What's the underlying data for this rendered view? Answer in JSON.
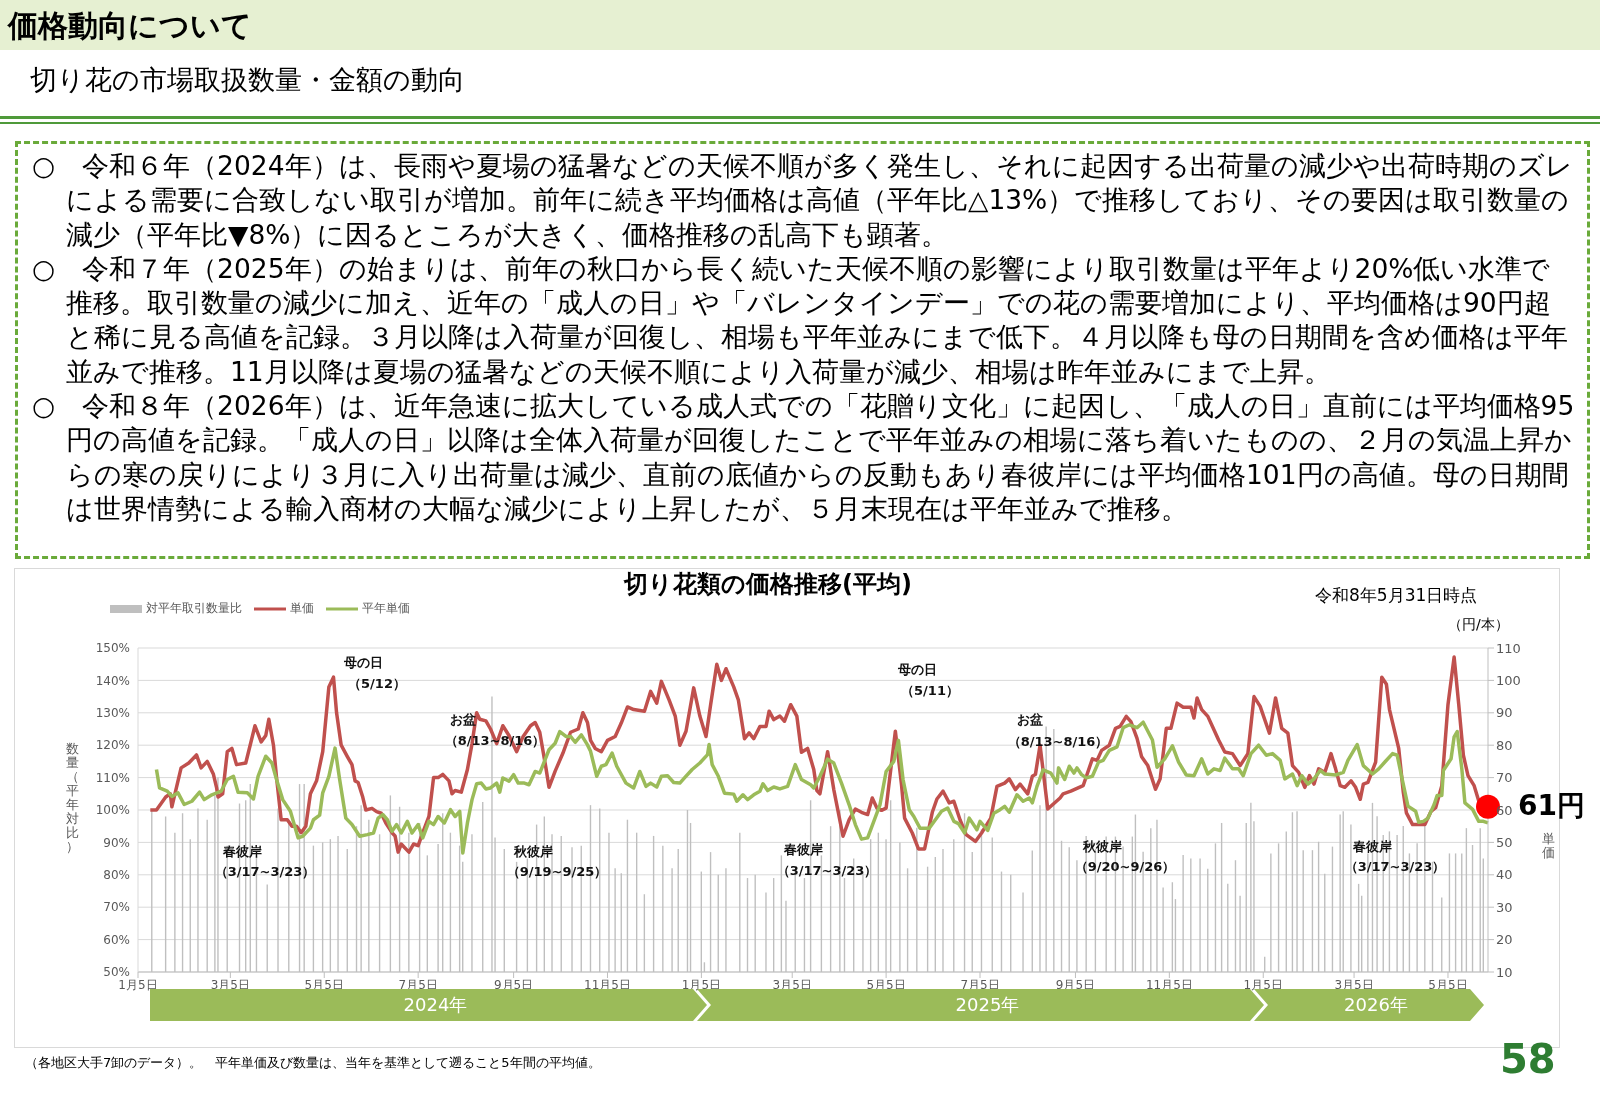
{
  "chart_data": {
    "type": "bar",
    "title": "切り花類の価格推移(平均)",
    "ylabel": "数量（平年対比）",
    "y2label": "単価",
    "legend": "top left",
    "grid": "y",
    "xlim": [
      "2024-01-05",
      "2026-05-31"
    ],
    "xticks": [
      {
        "value": "2024-01-05",
        "label": "1月5日"
      },
      {
        "value": "2024-03-05",
        "label": "3月5日"
      },
      {
        "value": "2024-05-05",
        "label": "5月5日"
      },
      {
        "value": "2024-07-05",
        "label": "7月5日"
      },
      {
        "value": "2024-09-05",
        "label": "9月5日"
      },
      {
        "value": "2024-11-05",
        "label": "11月5日"
      },
      {
        "value": "2025-01-05",
        "label": "1月5日"
      },
      {
        "value": "2025-03-05",
        "label": "3月5日"
      },
      {
        "value": "2025-05-05",
        "label": "5月5日"
      },
      {
        "value": "2025-07-05",
        "label": "7月5日"
      },
      {
        "value": "2025-09-05",
        "label": "9月5日"
      },
      {
        "value": "2025-11-05",
        "label": "11月5日"
      },
      {
        "value": "2026-01-05",
        "label": "1月5日"
      },
      {
        "value": "2026-03-05",
        "label": "3月5日"
      },
      {
        "value": "2026-05-05",
        "label": "5月5日"
      }
    ],
    "ylim": [
      50,
      150
    ],
    "yticks": [
      {
        "value": 50,
        "label": "50%"
      },
      {
        "value": 60,
        "label": "60%"
      },
      {
        "value": 70,
        "label": "70%"
      },
      {
        "value": 80,
        "label": "80%"
      },
      {
        "value": 90,
        "label": "90%"
      },
      {
        "value": 100,
        "label": "100%"
      },
      {
        "value": 110,
        "label": "110%"
      },
      {
        "value": 120,
        "label": "120%"
      },
      {
        "value": 130,
        "label": "130%"
      },
      {
        "value": 140,
        "label": "140%"
      },
      {
        "value": 150,
        "label": "150%"
      }
    ],
    "y2lim": [
      10,
      110
    ],
    "y2ticks": [
      10,
      20,
      30,
      40,
      50,
      60,
      70,
      80,
      90,
      100,
      110
    ],
    "x": [
      "2024-01-14",
      "2024-01-23",
      "2024-01-29",
      "2024-02-03",
      "2024-02-08",
      "2024-02-13",
      "2024-02-19",
      "2024-02-24",
      "2024-02-26",
      "2024-03-03",
      "2024-03-11",
      "2024-03-15",
      "2024-03-18",
      "2024-03-22",
      "2024-03-29",
      "2024-04-05",
      "2024-04-12",
      "2024-04-19",
      "2024-04-22",
      "2024-04-28",
      "2024-05-04",
      "2024-05-09",
      "2024-05-14",
      "2024-05-20",
      "2024-05-26",
      "2024-05-29",
      "2024-06-03",
      "2024-06-10",
      "2024-06-17",
      "2024-06-23",
      "2024-06-29",
      "2024-07-06",
      "2024-07-11",
      "2024-07-18",
      "2024-07-21",
      "2024-07-26",
      "2024-08-01",
      "2024-08-03",
      "2024-08-09",
      "2024-08-16",
      "2024-08-22",
      "2024-08-24",
      "2024-08-30",
      "2024-09-07",
      "2024-09-14",
      "2024-09-20",
      "2024-09-25",
      "2024-09-30",
      "2024-10-06",
      "2024-10-13",
      "2024-10-19",
      "2024-10-25",
      "2024-10-31",
      "2024-11-06",
      "2024-11-10",
      "2024-11-14",
      "2024-11-18",
      "2024-11-24",
      "2024-11-29",
      "2024-12-05",
      "2024-12-11",
      "2024-12-17",
      "2024-12-21",
      "2024-12-27",
      "2024-12-29",
      "2025-01-05",
      "2025-01-07",
      "2025-01-11",
      "2025-01-16",
      "2025-01-21",
      "2025-01-30",
      "2025-02-04",
      "2025-02-09",
      "2025-02-16",
      "2025-02-21",
      "2025-02-26",
      "2025-03-01",
      "2025-03-07",
      "2025-03-13",
      "2025-03-17",
      "2025-03-24",
      "2025-03-30",
      "2025-04-05",
      "2025-04-08",
      "2025-04-14",
      "2025-04-20",
      "2025-04-25",
      "2025-04-30",
      "2025-05-05",
      "2025-05-08",
      "2025-05-14",
      "2025-05-19",
      "2025-05-25",
      "2025-06-01",
      "2025-06-06",
      "2025-06-11",
      "2025-06-18",
      "2025-06-25",
      "2025-06-30",
      "2025-07-06",
      "2025-07-13",
      "2025-07-19",
      "2025-07-25",
      "2025-08-02",
      "2025-08-08",
      "2025-08-13",
      "2025-08-17",
      "2025-08-22",
      "2025-08-27",
      "2025-09-01",
      "2025-09-06",
      "2025-09-12",
      "2025-09-18",
      "2025-09-25",
      "2025-10-01",
      "2025-10-06",
      "2025-10-12",
      "2025-10-14",
      "2025-10-19",
      "2025-10-24",
      "2025-10-28",
      "2025-11-01",
      "2025-11-07",
      "2025-11-09",
      "2025-11-14",
      "2025-11-19",
      "2025-11-25",
      "2025-11-30",
      "2025-12-05",
      "2025-12-09",
      "2025-12-13",
      "2025-12-18",
      "2025-12-21",
      "2025-12-25",
      "2025-12-28",
      "2025-12-30",
      "2026-01-06",
      "2026-01-10",
      "2026-01-15",
      "2026-01-20",
      "2026-01-24",
      "2026-01-27",
      "2026-01-31",
      "2026-02-06",
      "2026-02-10",
      "2026-02-14",
      "2026-02-19",
      "2026-02-24",
      "2026-02-26",
      "2026-03-03",
      "2026-03-08",
      "2026-03-10",
      "2026-03-14",
      "2026-03-17",
      "2026-03-20",
      "2026-03-24",
      "2026-03-28",
      "2026-04-02",
      "2026-04-06",
      "2026-04-10",
      "2026-04-15",
      "2026-04-20",
      "2026-04-25",
      "2026-05-01",
      "2026-05-06",
      "2026-05-10",
      "2026-05-14",
      "2026-05-17",
      "2026-05-21",
      "2026-05-26",
      "2026-05-28"
    ],
    "series": [
      {
        "name": "対平年取引数量比",
        "color": "#bfbfbf",
        "values": [
          100,
          98,
          93,
          99,
          91,
          100.5,
          97,
          104.5,
          110,
          89,
          102,
          103,
          108,
          86,
          77,
          100.5,
          96,
          108,
          108,
          89,
          90,
          91,
          92,
          88,
          95,
          101.5,
          97,
          92.5,
          104.5,
          101,
          93,
          96,
          86,
          89.5,
          99,
          93,
          89,
          84,
          92.5,
          102.5,
          135,
          91.5,
          88,
          84,
          85,
          95.5,
          98,
          92.5,
          92,
          88.5,
          89,
          101.5,
          100.5,
          93,
          82,
          80.5,
          97,
          93,
          74,
          92,
          89,
          82,
          88,
          100,
          96,
          81,
          53,
          87,
          80,
          82,
          93,
          79,
          80,
          74.5,
          79,
          86,
          72,
          81,
          79,
          103,
          86,
          95,
          100,
          79,
          85,
          81,
          91,
          93,
          91,
          103,
          90,
          82,
          94.5,
          82.5,
          85.5,
          88,
          91,
          99,
          87,
          94,
          91.5,
          81,
          80,
          74.5,
          87.5,
          101.5,
          125.8,
          125,
          90.5,
          88.5,
          84.5,
          92,
          88,
          91.8,
          91.8,
          88.7,
          91.8,
          98.6,
          87.1,
          94.4,
          97,
          76.1,
          77.7,
          72.5,
          86.1,
          85,
          85,
          81.9,
          89.7,
          96,
          77.2,
          84.5,
          73.5,
          96,
          102.2,
          96.5,
          54.7,
          86.6,
          89.7,
          93.4,
          99.3,
          99.6,
          87.6,
          87.6,
          90.2,
          80.3,
          88.7,
          98.6,
          99.6,
          95.5,
          77.2,
          73.5,
          86.6,
          102.2,
          98.1,
          92.3,
          93.4,
          92.3,
          95.1,
          86.6,
          89.7,
          95.5,
          84,
          73,
          86.6,
          86.6,
          86.6,
          94.4,
          89.2,
          94.4,
          85
        ]
      },
      {
        "name": "単価",
        "type": "line",
        "axis": "y2",
        "color": "#c0504d",
        "x": [
          "2024-01-13",
          "2024-01-17",
          "2024-01-23",
          "2024-01-26",
          "2024-01-27",
          "2024-01-30",
          "2024-02-02",
          "2024-02-07",
          "2024-02-12",
          "2024-02-15",
          "2024-02-19",
          "2024-02-23",
          "2024-02-25",
          "2024-02-26",
          "2024-02-29",
          "2024-03-03",
          "2024-03-06",
          "2024-03-09",
          "2024-03-15",
          "2024-03-21",
          "2024-03-25",
          "2024-03-28",
          "2024-03-30",
          "2024-04-02",
          "2024-04-04",
          "2024-04-07",
          "2024-04-11",
          "2024-04-14",
          "2024-04-17",
          "2024-04-20",
          "2024-04-23",
          "2024-04-26",
          "2024-04-30",
          "2024-05-04",
          "2024-05-08",
          "2024-05-11",
          "2024-05-13",
          "2024-05-16",
          "2024-05-20",
          "2024-05-23",
          "2024-05-25",
          "2024-05-27",
          "2024-05-30",
          "2024-06-01",
          "2024-06-05",
          "2024-06-08",
          "2024-06-11",
          "2024-06-14",
          "2024-06-18",
          "2024-06-20",
          "2024-06-22",
          "2024-06-24",
          "2024-06-29",
          "2024-07-02",
          "2024-07-05",
          "2024-07-08",
          "2024-07-12",
          "2024-07-15",
          "2024-07-18",
          "2024-07-21",
          "2024-07-25",
          "2024-07-27",
          "2024-07-29",
          "2024-08-02",
          "2024-08-06",
          "2024-08-09",
          "2024-08-12",
          "2024-08-14",
          "2024-08-18",
          "2024-08-21",
          "2024-08-25",
          "2024-08-29",
          "2024-09-02",
          "2024-09-07",
          "2024-09-11",
          "2024-09-16",
          "2024-09-19",
          "2024-09-22",
          "2024-09-26",
          "2024-09-28",
          "2024-10-02",
          "2024-10-07",
          "2024-10-12",
          "2024-10-17",
          "2024-10-20",
          "2024-10-23",
          "2024-10-25",
          "2024-10-28",
          "2024-11-01",
          "2024-11-05",
          "2024-11-10",
          "2024-11-14",
          "2024-11-18",
          "2024-11-22",
          "2024-11-29",
          "2024-12-03",
          "2024-12-07",
          "2024-12-10",
          "2024-12-15",
          "2024-12-19",
          "2024-12-22",
          "2024-12-26",
          "2024-12-31",
          "2025-01-04",
          "2025-01-08",
          "2025-01-11",
          "2025-01-15",
          "2025-01-18",
          "2025-01-21",
          "2025-01-26",
          "2025-01-29",
          "2025-02-02",
          "2025-02-05",
          "2025-02-08",
          "2025-02-12",
          "2025-02-16",
          "2025-02-18",
          "2025-02-21",
          "2025-02-25",
          "2025-02-28",
          "2025-03-04",
          "2025-03-08",
          "2025-03-11",
          "2025-03-15",
          "2025-03-19",
          "2025-03-21",
          "2025-03-23",
          "2025-03-28",
          "2025-04-01",
          "2025-04-07",
          "2025-04-11",
          "2025-04-15",
          "2025-04-19",
          "2025-04-23",
          "2025-04-26",
          "2025-04-29",
          "2025-05-02",
          "2025-05-05",
          "2025-05-11",
          "2025-05-15",
          "2025-05-17",
          "2025-05-22",
          "2025-05-26",
          "2025-05-30",
          "2025-06-04",
          "2025-06-07",
          "2025-06-11",
          "2025-06-15",
          "2025-06-18",
          "2025-06-22",
          "2025-06-26",
          "2025-07-02",
          "2025-07-06",
          "2025-07-12",
          "2025-07-16",
          "2025-07-21",
          "2025-07-24",
          "2025-07-28",
          "2025-07-31",
          "2025-08-05",
          "2025-08-08",
          "2025-08-10",
          "2025-08-13",
          "2025-08-18",
          "2025-08-22",
          "2025-08-26",
          "2025-08-28",
          "2025-09-02",
          "2025-09-10",
          "2025-09-16",
          "2025-09-19",
          "2025-09-22",
          "2025-09-27",
          "2025-10-01",
          "2025-10-04",
          "2025-10-08",
          "2025-10-11",
          "2025-10-15",
          "2025-10-18",
          "2025-10-22",
          "2025-10-27",
          "2025-10-30",
          "2025-11-03",
          "2025-11-06",
          "2025-11-10",
          "2025-11-14",
          "2025-11-19",
          "2025-11-21",
          "2025-11-23",
          "2025-11-26",
          "2025-11-30",
          "2025-12-03",
          "2025-12-07",
          "2025-12-11",
          "2025-12-16",
          "2025-12-21",
          "2025-12-26",
          "2025-12-30",
          "2026-01-03",
          "2026-01-09",
          "2026-01-13",
          "2026-01-17",
          "2026-01-21",
          "2026-01-24",
          "2026-01-28",
          "2026-02-01",
          "2026-02-04",
          "2026-02-07",
          "2026-02-10",
          "2026-02-14",
          "2026-02-18",
          "2026-02-21",
          "2026-02-24",
          "2026-02-27",
          "2026-03-03",
          "2026-03-06",
          "2026-03-09",
          "2026-03-11",
          "2026-03-14",
          "2026-03-19",
          "2026-03-23",
          "2026-03-26",
          "2026-03-28",
          "2026-04-03",
          "2026-04-06",
          "2026-04-08",
          "2026-04-12",
          "2026-04-16",
          "2026-04-20",
          "2026-04-24",
          "2026-04-27",
          "2026-05-01",
          "2026-05-05",
          "2026-05-09",
          "2026-05-12",
          "2026-05-15",
          "2026-05-18",
          "2026-05-22",
          "2026-05-25",
          "2026-05-31"
        ],
        "values": [
          60,
          60,
          64,
          65,
          61,
          67,
          73,
          74.5,
          77,
          73,
          75,
          71,
          67,
          64,
          65,
          78,
          79,
          74,
          74.5,
          86,
          81,
          83,
          88,
          80,
          70,
          57,
          57,
          55,
          55,
          53,
          55,
          65,
          69,
          78,
          98,
          101,
          90,
          80,
          76.5,
          74,
          69,
          68.5,
          64,
          60,
          60.5,
          59.5,
          59,
          56,
          53,
          52,
          47,
          49.5,
          47,
          49.5,
          49,
          53,
          58,
          70,
          70,
          71,
          69,
          65,
          66,
          65.5,
          72.5,
          80.5,
          90,
          88,
          87.5,
          85,
          80.5,
          86,
          83,
          78,
          82.5,
          86,
          87,
          84,
          73,
          67,
          72,
          77.5,
          84,
          85,
          90,
          87,
          81.5,
          79,
          78,
          81.5,
          82.7,
          86.9,
          91.8,
          91,
          90.5,
          96.6,
          93,
          99.7,
          94,
          89,
          80,
          84.3,
          97.7,
          89,
          82.7,
          92.5,
          105,
          100,
          103.6,
          98,
          94,
          82,
          83.8,
          82,
          85.8,
          85.8,
          90.5,
          87.9,
          89,
          87.4,
          92.5,
          89,
          77.8,
          79,
          72.5,
          66,
          65,
          78,
          66.3,
          51.9,
          57,
          60.3,
          59.3,
          58.6,
          63.7,
          60.6,
          59.9,
          60.6,
          84.3,
          67.8,
          57.5,
          52.9,
          48,
          48,
          59.3,
          63.4,
          65.8,
          62.2,
          62.7,
          57,
          52.4,
          50.3,
          52.9,
          57.5,
          67.3,
          68.3,
          69.6,
          66.3,
          68,
          65,
          70.4,
          71,
          80,
          60.3,
          62,
          63.7,
          65,
          65.8,
          67.5,
          75.8,
          75.3,
          78.4,
          80,
          85.2,
          85.8,
          88.9,
          87.3,
          82.1,
          76.4,
          73.7,
          66.4,
          69.6,
          85.2,
          85.2,
          93,
          91.7,
          91.7,
          88.4,
          94.6,
          91,
          88.9,
          85.8,
          81.6,
          77.9,
          77.4,
          73.7,
          77.4,
          95,
          92,
          83.7,
          94.6,
          85.2,
          83.7,
          73.7,
          71.6,
          67,
          70.6,
          68,
          72.7,
          71.6,
          77.4,
          72.7,
          67.5,
          67,
          69,
          67,
          63.3,
          68,
          68.5,
          74.8,
          101,
          98.8,
          91,
          79,
          65.4,
          59.1,
          55.5,
          55.5,
          55.5,
          59.6,
          60.7,
          67.5,
          92.5,
          107.2,
          92.5,
          76.9,
          70.6,
          67.5,
          62.8,
          61
        ]
      },
      {
        "name": "平年単価",
        "type": "line",
        "axis": "y2",
        "color": "#9bbb59",
        "x": [
          "2024-01-17",
          "2024-01-19",
          "2024-01-24",
          "2024-01-27",
          "2024-01-31",
          "2024-02-04",
          "2024-02-09",
          "2024-02-14",
          "2024-02-17",
          "2024-02-22",
          "2024-02-28",
          "2024-03-03",
          "2024-03-07",
          "2024-03-10",
          "2024-03-16",
          "2024-03-20",
          "2024-03-23",
          "2024-03-28",
          "2024-04-01",
          "2024-04-04",
          "2024-04-08",
          "2024-04-13",
          "2024-04-18",
          "2024-04-21",
          "2024-04-26",
          "2024-04-28",
          "2024-05-02",
          "2024-05-04",
          "2024-05-08",
          "2024-05-12",
          "2024-05-15",
          "2024-05-19",
          "2024-05-23",
          "2024-05-28",
          "2024-06-02",
          "2024-06-06",
          "2024-06-09",
          "2024-06-12",
          "2024-06-15",
          "2024-06-18",
          "2024-06-21",
          "2024-06-24",
          "2024-06-28",
          "2024-07-01",
          "2024-07-05",
          "2024-07-08",
          "2024-07-12",
          "2024-07-15",
          "2024-07-18",
          "2024-07-22",
          "2024-07-26",
          "2024-07-29",
          "2024-08-01",
          "2024-08-03",
          "2024-08-06",
          "2024-08-09",
          "2024-08-12",
          "2024-08-15",
          "2024-08-18",
          "2024-08-21",
          "2024-08-25",
          "2024-08-27",
          "2024-08-29",
          "2024-09-02",
          "2024-09-05",
          "2024-09-08",
          "2024-09-12",
          "2024-09-15",
          "2024-09-19",
          "2024-09-22",
          "2024-09-28",
          "2024-10-02",
          "2024-10-05",
          "2024-10-09",
          "2024-10-12",
          "2024-10-15",
          "2024-10-19",
          "2024-10-23",
          "2024-10-25",
          "2024-10-29",
          "2024-11-01",
          "2024-11-04",
          "2024-11-08",
          "2024-11-11",
          "2024-11-17",
          "2024-11-22",
          "2024-11-26",
          "2024-11-30",
          "2024-12-03",
          "2024-12-07",
          "2024-12-10",
          "2024-12-14",
          "2024-12-18",
          "2024-12-22",
          "2024-12-25",
          "2024-12-30",
          "2025-01-04",
          "2025-01-09",
          "2025-01-10",
          "2025-01-12",
          "2025-01-16",
          "2025-01-20",
          "2025-01-26",
          "2025-01-28",
          "2025-02-01",
          "2025-02-04",
          "2025-02-08",
          "2025-02-12",
          "2025-02-14",
          "2025-02-17",
          "2025-02-21",
          "2025-02-25",
          "2025-03-02",
          "2025-03-07",
          "2025-03-11",
          "2025-03-17",
          "2025-03-19",
          "2025-03-23",
          "2025-03-28",
          "2025-04-01",
          "2025-04-06",
          "2025-04-11",
          "2025-04-15",
          "2025-04-19",
          "2025-04-23",
          "2025-04-27",
          "2025-05-01",
          "2025-05-05",
          "2025-05-10",
          "2025-05-13",
          "2025-05-16",
          "2025-05-20",
          "2025-05-23",
          "2025-05-27",
          "2025-06-02",
          "2025-06-06",
          "2025-06-10",
          "2025-06-14",
          "2025-06-18",
          "2025-06-21",
          "2025-06-25",
          "2025-06-28",
          "2025-07-03",
          "2025-07-05",
          "2025-07-10",
          "2025-07-14",
          "2025-07-18",
          "2025-07-21",
          "2025-07-24",
          "2025-07-29",
          "2025-08-02",
          "2025-08-06",
          "2025-08-08",
          "2025-08-11",
          "2025-08-15",
          "2025-08-20",
          "2025-08-24",
          "2025-08-25",
          "2025-08-29",
          "2025-09-01",
          "2025-09-04",
          "2025-09-06",
          "2025-09-09",
          "2025-09-12",
          "2025-09-16",
          "2025-09-20",
          "2025-09-23",
          "2025-09-27",
          "2025-10-02",
          "2025-10-06",
          "2025-10-10",
          "2025-10-15",
          "2025-10-19",
          "2025-10-25",
          "2025-10-28",
          "2025-11-02",
          "2025-11-07",
          "2025-11-11",
          "2025-11-16",
          "2025-11-21",
          "2025-11-26",
          "2025-11-30",
          "2025-12-04",
          "2025-12-08",
          "2025-12-11",
          "2025-12-16",
          "2025-12-20",
          "2025-12-23",
          "2025-12-28",
          "2026-01-02",
          "2026-01-07",
          "2026-01-11",
          "2026-01-16",
          "2026-01-19",
          "2026-01-24",
          "2026-01-27",
          "2026-01-30",
          "2026-02-03",
          "2026-02-07",
          "2026-02-11",
          "2026-02-14",
          "2026-02-21",
          "2026-02-26",
          "2026-03-01",
          "2026-03-07",
          "2026-03-11",
          "2026-03-17",
          "2026-03-21",
          "2026-03-25",
          "2026-03-30",
          "2026-04-02",
          "2026-04-05",
          "2026-04-09",
          "2026-04-14",
          "2026-04-16",
          "2026-04-19",
          "2026-04-22",
          "2026-04-26",
          "2026-04-28",
          "2026-05-01",
          "2026-05-02",
          "2026-05-07",
          "2026-05-09",
          "2026-05-11",
          "2026-05-14",
          "2026-05-16",
          "2026-05-21",
          "2026-05-25",
          "2026-05-28",
          "2026-05-31"
        ],
        "values": [
          72.5,
          66.8,
          65.8,
          64.2,
          65.3,
          61.7,
          62.7,
          65.5,
          63.2,
          64.7,
          65.8,
          69.4,
          70.4,
          65.5,
          65.3,
          63.4,
          70.4,
          76.6,
          74.5,
          69.4,
          63.2,
          59.6,
          51.4,
          51.9,
          54.4,
          57,
          58.4,
          65.3,
          70.4,
          79.1,
          69.4,
          57.5,
          55.5,
          51.9,
          52.4,
          52.9,
          57.5,
          58.6,
          57,
          53.4,
          55.5,
          52.9,
          56.5,
          52.9,
          55.5,
          51.4,
          56.5,
          55.5,
          58,
          56,
          60.1,
          58,
          59.6,
          46.7,
          56,
          63.2,
          68.1,
          68.3,
          66.5,
          66.8,
          68.3,
          65.5,
          69.9,
          68.9,
          70.9,
          68.3,
          68.3,
          67.8,
          71.9,
          71.4,
          78.6,
          80.6,
          84.2,
          82.7,
          82.7,
          80.9,
          83.2,
          80.1,
          78.1,
          70.4,
          73.5,
          74,
          77.6,
          73.5,
          68.3,
          66.8,
          71.9,
          67.3,
          68.3,
          67.1,
          70.4,
          70.6,
          68.5,
          68.3,
          69.9,
          72.5,
          74.5,
          77.1,
          80.2,
          74,
          70.4,
          65.2,
          64.9,
          62.7,
          64.7,
          63.2,
          64.7,
          65.8,
          68.1,
          66,
          67.1,
          66.5,
          67.3,
          74,
          69.4,
          67.8,
          66.8,
          70.4,
          75.7,
          74.5,
          68.3,
          61.6,
          55.5,
          51,
          51.4,
          56.5,
          61.6,
          71.9,
          75,
          81.5,
          69.4,
          60.1,
          58,
          54.4,
          54.4,
          57,
          59.6,
          60.6,
          56.5,
          55.8,
          52.9,
          57.5,
          53.9,
          56.5,
          53.7,
          59,
          60.1,
          61.1,
          59.3,
          64.7,
          62.7,
          63.7,
          62.2,
          67.3,
          72.4,
          71.4,
          68.3,
          73,
          69.4,
          73.5,
          71.4,
          73,
          70.9,
          69.9,
          70.4,
          74.8,
          75.3,
          78.4,
          79.5,
          85.4,
          86.3,
          85.4,
          87.1,
          81.6,
          73.2,
          75.8,
          79.8,
          74.8,
          70.8,
          70.6,
          75.8,
          71.1,
          72.7,
          72.2,
          76,
          72.7,
          72.7,
          70.6,
          77.4,
          80,
          76.9,
          77.4,
          75.3,
          69.6,
          71.1,
          67.5,
          70.6,
          68,
          69.6,
          72.2,
          71.1,
          70.8,
          71.6,
          75.3,
          80.2,
          73.7,
          71.1,
          72.7,
          74.8,
          77.4,
          76.9,
          70.1,
          61.2,
          59.6,
          56.2,
          56.5,
          57.5,
          61.7,
          64.5,
          64.5,
          72.2,
          75.8,
          82.6,
          84.2,
          72.7,
          62.2,
          60.2,
          56.5,
          56.5,
          56
        ]
      },
      {
        "type": "scatter",
        "axis": "y2",
        "color": "#ff0000",
        "x": [
          "2026-05-31"
        ],
        "values": [
          61
        ],
        "value_labels": [
          "61円"
        ]
      }
    ],
    "annotations": [
      "価格動向について",
      "切り花の市場取扱数量・金額の動向",
      "○　令和６年（2024年）は、長雨や夏場の猛暑などの天候不順が多く発生し、それに起因する出荷量の減少や出荷時期のズレによる需要に合致しない取引が増加。前年に続き平均価格は高値（平年比△13%）で推移しており、その要因は取引数量の減少（平年比▼8%）に因るところが大きく、価格推移の乱高下も顕著。",
      "○　令和７年（2025年）の始まりは、前年の秋口から長く続いた天候不順の影響により取引数量は平年より20%低い水準で推移。取引数量の減少に加え、近年の「成人の日」や「バレンタインデー」での花の需要増加により、平均価格は90円超と稀に見る高値を記録。３月以降は入荷量が回復し、相場も平年並みにまで低下。４月以降も母の日期間を含め価格は平年並みで推移。11月以降は夏場の猛暑などの天候不順により入荷量が減少、相場は昨年並みにまで上昇。",
      "○　令和８年（2026年）は、近年急速に拡大している成人式での「花贈り文化」に起因し、「成人の日」直前には平均価格95円の高値を記録。「成人の日」以降は全体入荷量が回復したことで平年並みの相場に落ち着いたものの、２月の気温上昇からの寒の戻りにより３月に入り出荷量は減少、直前の底値からの反動もあり春彼岸には平均価格101円の高値。母の日期間は世界情勢による輸入商材の大幅な減少により上昇したが、５月末現在は平年並みで推移。",
      "令和8年5月31日時点",
      "（円/本）",
      "2024年",
      "2025年",
      "2026年",
      "（各地区大手7卸のデータ）。　平年単価及び数量は、当年を基準として遡ること5年間の平均値。",
      "58",
      "母の日",
      "（5/12）",
      "お盆",
      "（8/13~8/16）",
      "春彼岸",
      "（3/17~3/23）",
      "秋彼岸",
      "（9/19~9/25）",
      "母の日",
      "（5/11）",
      "春彼岸",
      "（3/17~3/23）",
      "お盆",
      "（8/13~8/16）",
      "秋彼岸",
      "（9/20~9/26）",
      "春彼岸",
      "（3/17~3/23）"
    ]
  }
}
